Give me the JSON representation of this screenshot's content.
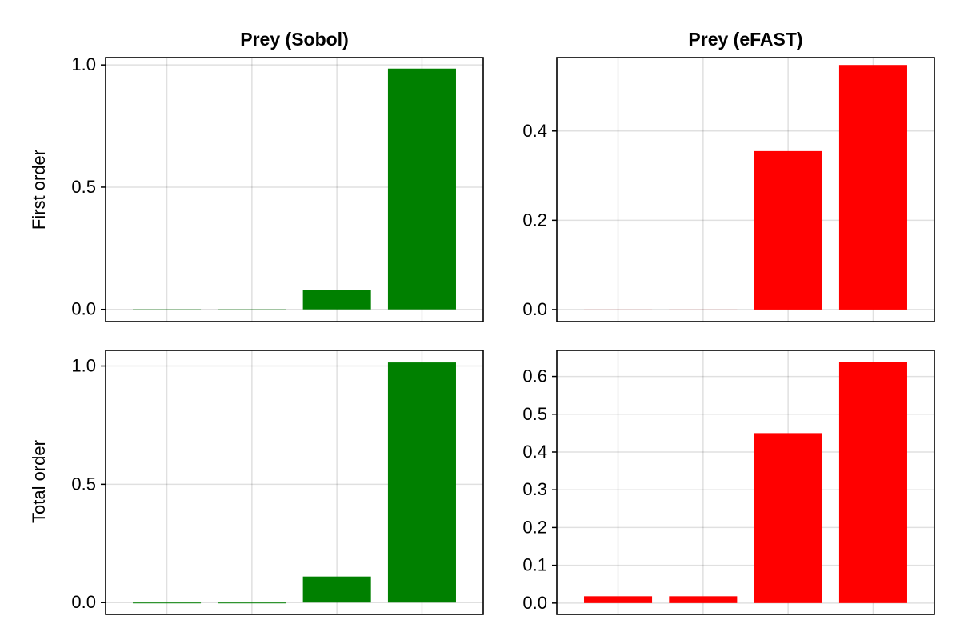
{
  "figure": {
    "layout": "2x2 grid of bar charts"
  },
  "colors": {
    "sobol": "#008000",
    "efast": "#ff0000"
  },
  "chart_data": [
    {
      "id": "sobol-first",
      "type": "bar",
      "title": "Prey (Sobol)",
      "xlabel": "",
      "ylabel": "First order",
      "categories": [
        "",
        "",
        "",
        ""
      ],
      "values": [
        0.0,
        0.0,
        0.08,
        0.985
      ],
      "ylim": [
        -0.05,
        1.03
      ],
      "yticks": [
        0.0,
        0.5,
        1.0
      ],
      "ytick_labels": [
        "0.0",
        "0.5",
        "1.0"
      ],
      "color": "#008000",
      "grid": true
    },
    {
      "id": "efast-first",
      "type": "bar",
      "title": "Prey (eFAST)",
      "xlabel": "",
      "ylabel": "",
      "categories": [
        "",
        "",
        "",
        ""
      ],
      "values": [
        0.0,
        0.0,
        0.355,
        0.548
      ],
      "ylim": [
        -0.027,
        0.5645
      ],
      "yticks": [
        0.0,
        0.2,
        0.4
      ],
      "ytick_labels": [
        "0.0",
        "0.2",
        "0.4"
      ],
      "color": "#ff0000",
      "grid": true
    },
    {
      "id": "sobol-total",
      "type": "bar",
      "title": "",
      "xlabel": "",
      "ylabel": "Total order",
      "categories": [
        "",
        "",
        "",
        ""
      ],
      "values": [
        0.0,
        0.0,
        0.11,
        1.015
      ],
      "ylim": [
        -0.05,
        1.066
      ],
      "yticks": [
        0.0,
        0.5,
        1.0
      ],
      "ytick_labels": [
        "0.0",
        "0.5",
        "1.0"
      ],
      "color": "#008000",
      "grid": true
    },
    {
      "id": "efast-total",
      "type": "bar",
      "title": "",
      "xlabel": "",
      "ylabel": "",
      "categories": [
        "",
        "",
        "",
        ""
      ],
      "values": [
        0.018,
        0.018,
        0.45,
        0.638
      ],
      "ylim": [
        -0.03,
        0.669
      ],
      "yticks": [
        0.0,
        0.1,
        0.2,
        0.3,
        0.4,
        0.5,
        0.6
      ],
      "ytick_labels": [
        "0.0",
        "0.1",
        "0.2",
        "0.3",
        "0.4",
        "0.5",
        "0.6"
      ],
      "color": "#ff0000",
      "grid": true
    }
  ]
}
